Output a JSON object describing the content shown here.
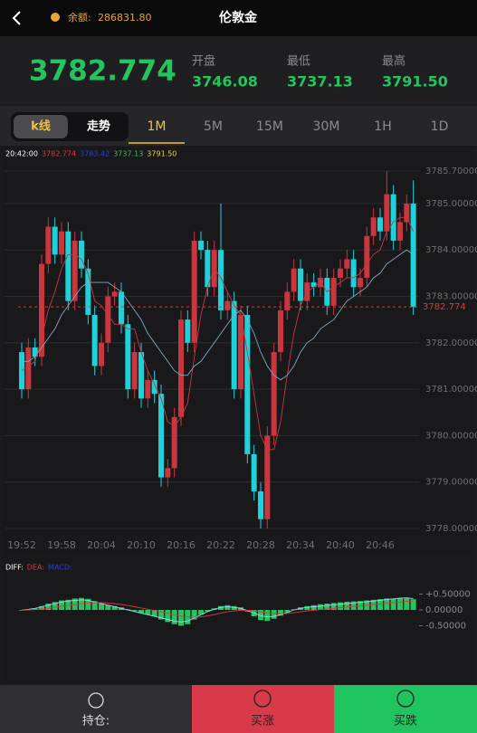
{
  "header": {
    "balance_label": "余额:",
    "balance": "286831.80",
    "title": "伦敦金"
  },
  "quote": {
    "price": "3782.774",
    "stats": [
      {
        "label": "开盘",
        "value": "3746.08"
      },
      {
        "label": "最低",
        "value": "3737.13"
      },
      {
        "label": "最高",
        "value": "3791.50"
      }
    ]
  },
  "tabs": {
    "modes": [
      "k线",
      "走势"
    ],
    "active_mode": "k线",
    "periods": [
      "1M",
      "5M",
      "15M",
      "30M",
      "1H",
      "1D"
    ],
    "active_period": "1M"
  },
  "chart_data": [
    {
      "type": "candlestick",
      "legend": [
        {
          "text": "20:42:00",
          "color": "#ffffff"
        },
        {
          "text": "3782.774",
          "color": "#e0373f"
        },
        {
          "text": "3783.42",
          "color": "#2a3fd6"
        },
        {
          "text": "3737.13",
          "color": "#3fbf4f"
        },
        {
          "text": "3791.50",
          "color": "#f2d13a"
        }
      ],
      "categories": [
        "19:52",
        null,
        null,
        null,
        null,
        null,
        "19:58",
        null,
        null,
        null,
        null,
        null,
        "20:04",
        null,
        null,
        null,
        null,
        null,
        "20:10",
        null,
        null,
        null,
        null,
        null,
        "20:16",
        null,
        null,
        null,
        null,
        null,
        "20:22",
        null,
        null,
        null,
        null,
        null,
        "20:28",
        null,
        null,
        null,
        null,
        null,
        "20:34",
        null,
        null,
        null,
        null,
        null,
        "20:40",
        null,
        null,
        null,
        null,
        null,
        "20:46",
        null,
        null,
        null,
        null,
        null
      ],
      "up_color": "#c9363e",
      "down_color": "#1fd1d8",
      "ohlc": [
        [
          3781.8,
          3782.0,
          3780.8,
          3781.0
        ],
        [
          3781.0,
          3782.1,
          3780.8,
          3781.9
        ],
        [
          3781.9,
          3782.1,
          3781.5,
          3781.7
        ],
        [
          3781.7,
          3783.9,
          3781.5,
          3783.7
        ],
        [
          3783.7,
          3784.7,
          3783.5,
          3784.5
        ],
        [
          3784.5,
          3784.7,
          3783.7,
          3783.9
        ],
        [
          3783.9,
          3784.6,
          3783.7,
          3784.4
        ],
        [
          3784.4,
          3784.6,
          3782.7,
          3782.9
        ],
        [
          3782.9,
          3784.4,
          3782.7,
          3784.2
        ],
        [
          3784.2,
          3784.4,
          3783.4,
          3783.6
        ],
        [
          3783.6,
          3783.8,
          3782.4,
          3782.6
        ],
        [
          3782.6,
          3782.8,
          3781.3,
          3781.5
        ],
        [
          3781.5,
          3782.2,
          3781.3,
          3782.0
        ],
        [
          3782.0,
          3783.2,
          3781.8,
          3783.0
        ],
        [
          3783.0,
          3783.3,
          3782.8,
          3783.1
        ],
        [
          3783.1,
          3783.3,
          3782.2,
          3782.4
        ],
        [
          3782.4,
          3782.6,
          3780.8,
          3781.0
        ],
        [
          3781.0,
          3782.0,
          3780.8,
          3781.8
        ],
        [
          3781.8,
          3782.0,
          3780.6,
          3780.8
        ],
        [
          3780.8,
          3781.4,
          3780.6,
          3781.2
        ],
        [
          3781.2,
          3781.4,
          3780.7,
          3780.9
        ],
        [
          3780.9,
          3781.1,
          3778.9,
          3779.1
        ],
        [
          3779.1,
          3779.5,
          3778.9,
          3779.3
        ],
        [
          3779.3,
          3780.6,
          3779.1,
          3780.4
        ],
        [
          3780.4,
          3782.7,
          3780.2,
          3782.5
        ],
        [
          3782.5,
          3782.7,
          3781.8,
          3782.0
        ],
        [
          3782.0,
          3784.4,
          3781.8,
          3784.2
        ],
        [
          3784.2,
          3784.4,
          3783.8,
          3784.0
        ],
        [
          3784.0,
          3784.2,
          3783.0,
          3783.2
        ],
        [
          3783.2,
          3784.2,
          3783.0,
          3784.0
        ],
        [
          3784.0,
          3785.0,
          3782.5,
          3782.7
        ],
        [
          3782.7,
          3783.1,
          3782.5,
          3782.9
        ],
        [
          3782.9,
          3783.1,
          3780.8,
          3781.0
        ],
        [
          3781.0,
          3782.8,
          3780.8,
          3782.6
        ],
        [
          3782.6,
          3782.8,
          3779.4,
          3779.6
        ],
        [
          3779.6,
          3779.8,
          3778.6,
          3778.8
        ],
        [
          3778.8,
          3779.0,
          3778.0,
          3778.2
        ],
        [
          3778.2,
          3780.2,
          3778.0,
          3780.0
        ],
        [
          3780.0,
          3782.0,
          3779.8,
          3781.8
        ],
        [
          3781.8,
          3782.9,
          3781.6,
          3782.7
        ],
        [
          3782.7,
          3783.3,
          3782.5,
          3783.1
        ],
        [
          3783.1,
          3783.8,
          3782.9,
          3783.6
        ],
        [
          3783.6,
          3783.8,
          3782.7,
          3782.9
        ],
        [
          3782.9,
          3783.5,
          3782.7,
          3783.3
        ],
        [
          3783.3,
          3783.5,
          3783.0,
          3783.2
        ],
        [
          3783.2,
          3783.6,
          3783.0,
          3783.4
        ],
        [
          3783.4,
          3783.6,
          3782.6,
          3782.8
        ],
        [
          3782.8,
          3783.6,
          3782.6,
          3783.4
        ],
        [
          3783.4,
          3783.8,
          3783.2,
          3783.6
        ],
        [
          3783.6,
          3784.0,
          3783.4,
          3783.8
        ],
        [
          3783.8,
          3784.0,
          3783.0,
          3783.2
        ],
        [
          3783.2,
          3783.6,
          3783.0,
          3783.4
        ],
        [
          3783.4,
          3784.5,
          3783.2,
          3784.3
        ],
        [
          3784.3,
          3784.9,
          3784.1,
          3784.7
        ],
        [
          3784.7,
          3784.9,
          3784.2,
          3784.4
        ],
        [
          3784.4,
          3785.7,
          3784.2,
          3785.2
        ],
        [
          3785.2,
          3785.4,
          3784.0,
          3784.2
        ],
        [
          3784.2,
          3784.8,
          3784.0,
          3784.6
        ],
        [
          3784.6,
          3785.2,
          3784.4,
          3785.0
        ],
        [
          3785.0,
          3785.5,
          3782.6,
          3782.774
        ]
      ],
      "series": [
        {
          "color": "#c9363e",
          "values": [
            3781.4,
            3781.5,
            3781.6,
            3782.1,
            3782.7,
            3783.1,
            3783.6,
            3783.9,
            3783.9,
            3783.8,
            3783.5,
            3782.9,
            3782.8,
            3782.6,
            3782.4,
            3782.4,
            3782.3,
            3782.3,
            3781.8,
            3781.4,
            3781.1,
            3780.8,
            3780.3,
            3780.2,
            3780.4,
            3780.7,
            3781.7,
            3782.6,
            3783.2,
            3783.6,
            3783.4,
            3783.1,
            3782.8,
            3782.6,
            3781.8,
            3780.9,
            3780.0,
            3779.7,
            3779.7,
            3780.3,
            3781.3,
            3782.2,
            3782.8,
            3783.1,
            3783.2,
            3783.3,
            3783.1,
            3783.2,
            3783.3,
            3783.4,
            3783.4,
            3783.5,
            3783.7,
            3783.9,
            3784.0,
            3784.4,
            3784.6,
            3784.7,
            3784.7,
            3784.4
          ]
        },
        {
          "color": "#7fa8bf",
          "values": [
            3781.6,
            3781.6,
            3781.7,
            3781.9,
            3782.1,
            3782.3,
            3782.6,
            3782.8,
            3783.0,
            3783.2,
            3783.3,
            3783.3,
            3783.3,
            3783.3,
            3783.2,
            3783.1,
            3782.9,
            3782.7,
            3782.5,
            3782.2,
            3782.0,
            3781.8,
            3781.6,
            3781.4,
            3781.3,
            3781.3,
            3781.5,
            3781.6,
            3781.8,
            3782.0,
            3782.2,
            3782.4,
            3782.6,
            3782.7,
            3782.5,
            3782.2,
            3781.8,
            3781.5,
            3781.3,
            3781.2,
            3781.3,
            3781.5,
            3781.8,
            3782.0,
            3782.1,
            3782.3,
            3782.4,
            3782.5,
            3782.7,
            3782.9,
            3783.0,
            3783.1,
            3783.2,
            3783.4,
            3783.5,
            3783.7,
            3783.8,
            3783.9,
            3784.0,
            3783.9
          ]
        }
      ],
      "ylim": [
        3778.0,
        3785.7
      ],
      "yticks": [
        {
          "value": 3785.7,
          "label": "3785.70000"
        },
        {
          "value": 3785,
          "label": "3785.00000"
        },
        {
          "value": 3784,
          "label": "3784.00000"
        },
        {
          "value": 3783,
          "label": "3783.00000"
        },
        {
          "value": 3782,
          "label": "3782.00000"
        },
        {
          "value": 3781,
          "label": "3781.00000"
        },
        {
          "value": 3780,
          "label": "3780.00000"
        },
        {
          "value": 3779,
          "label": "3779.00000"
        },
        {
          "value": 3778,
          "label": "3778.00000"
        }
      ],
      "grid": true
    },
    {
      "type": "macd",
      "legend": [
        {
          "text": "DIFF:",
          "color": "#ffffff"
        },
        {
          "text": "DEA:",
          "color": "#e0373f"
        },
        {
          "text": "MACD:",
          "color": "#2a3fd6"
        }
      ],
      "bar_color": "#22c55e",
      "values": [
        -0.02,
        0.02,
        0.05,
        0.12,
        0.2,
        0.25,
        0.3,
        0.32,
        0.36,
        0.38,
        0.35,
        0.28,
        0.2,
        0.15,
        0.12,
        0.08,
        0.02,
        -0.04,
        -0.1,
        -0.15,
        -0.2,
        -0.3,
        -0.38,
        -0.45,
        -0.5,
        -0.45,
        -0.3,
        -0.15,
        -0.05,
        0.05,
        0.12,
        0.15,
        0.12,
        0.08,
        -0.05,
        -0.2,
        -0.32,
        -0.35,
        -0.28,
        -0.18,
        -0.08,
        0.02,
        0.08,
        0.12,
        0.15,
        0.18,
        0.2,
        0.22,
        0.24,
        0.26,
        0.27,
        0.28,
        0.3,
        0.32,
        0.34,
        0.36,
        0.36,
        0.38,
        0.38,
        0.34
      ],
      "series": [
        {
          "color": "#9fd3e8",
          "values": [
            0.0,
            0.02,
            0.05,
            0.1,
            0.15,
            0.2,
            0.25,
            0.28,
            0.3,
            0.32,
            0.3,
            0.25,
            0.2,
            0.15,
            0.1,
            0.05,
            0.0,
            -0.05,
            -0.1,
            -0.15,
            -0.2,
            -0.25,
            -0.3,
            -0.35,
            -0.38,
            -0.35,
            -0.25,
            -0.15,
            -0.05,
            0.02,
            0.08,
            0.1,
            0.08,
            0.05,
            -0.02,
            -0.1,
            -0.18,
            -0.22,
            -0.2,
            -0.15,
            -0.08,
            0.0,
            0.05,
            0.08,
            0.1,
            0.12,
            0.14,
            0.16,
            0.18,
            0.2,
            0.22,
            0.24,
            0.26,
            0.28,
            0.3,
            0.33,
            0.35,
            0.37,
            0.38,
            0.36
          ]
        },
        {
          "color": "#e0373f",
          "values": [
            0.0,
            0.0,
            0.01,
            0.03,
            0.05,
            0.08,
            0.11,
            0.14,
            0.17,
            0.2,
            0.22,
            0.23,
            0.23,
            0.22,
            0.2,
            0.17,
            0.14,
            0.1,
            0.06,
            0.02,
            -0.02,
            -0.06,
            -0.1,
            -0.15,
            -0.19,
            -0.22,
            -0.23,
            -0.22,
            -0.19,
            -0.15,
            -0.1,
            -0.06,
            -0.03,
            -0.01,
            -0.01,
            -0.03,
            -0.06,
            -0.09,
            -0.11,
            -0.12,
            -0.11,
            -0.09,
            -0.06,
            -0.03,
            -0.01,
            0.01,
            0.03,
            0.05,
            0.07,
            0.09,
            0.11,
            0.13,
            0.15,
            0.17,
            0.19,
            0.21,
            0.23,
            0.25,
            0.27,
            0.28
          ]
        }
      ],
      "ylim": [
        -1,
        1
      ],
      "yticks": [
        {
          "value": 0.5,
          "label": "+0.50000"
        },
        {
          "value": 0,
          "label": "0.00000"
        },
        {
          "value": -0.5,
          "label": "-0.50000"
        }
      ]
    }
  ],
  "footer": {
    "buttons": [
      "持仓:",
      "买涨",
      "买跌"
    ]
  }
}
